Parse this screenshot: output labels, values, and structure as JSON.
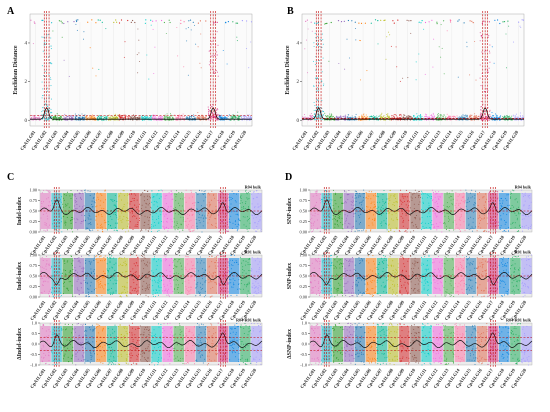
{
  "figure": {
    "panels": [
      {
        "id": "A",
        "letter": "A",
        "kind": "euclid",
        "ylabel": "Euclidean Distance",
        "yticks": [
          "0",
          "2",
          "4"
        ],
        "ymax": 5.5,
        "threshold": 0.25,
        "peak_chromosomes": [
          2,
          17
        ]
      },
      {
        "id": "B",
        "letter": "B",
        "kind": "euclid",
        "ylabel": "Euclidean Distance",
        "yticks": [
          "0",
          "2",
          "4"
        ],
        "ymax": 5.5,
        "threshold": 0.1,
        "peak_chromosomes": [
          2,
          17
        ]
      },
      {
        "id": "C",
        "letter": "C",
        "kind": "stack",
        "peak_chromosomes": [
          2,
          17
        ],
        "subplots": [
          {
            "ylabel": "Indel-index",
            "bulk_label": "R04 bulk",
            "yticks": [
              "0.00",
              "0.25",
              "0.50",
              "0.75",
              "1.00"
            ],
            "ymin": 0,
            "ymax": 1,
            "mean": 0.5,
            "threshold": 0.5
          },
          {
            "ylabel": "Indel-index",
            "bulk_label": "R01 bulk",
            "yticks": [
              "0.00",
              "0.25",
              "0.50",
              "0.75",
              "1.00"
            ],
            "ymin": 0,
            "ymax": 1,
            "mean": 0.5,
            "threshold": 0.5
          },
          {
            "ylabel": "ΔIndel-index",
            "bulk_label": "R04-R01 bulk",
            "yticks": [
              "-1.0",
              "-0.5",
              "0.0",
              "0.5",
              "1.0"
            ],
            "ymin": -1,
            "ymax": 1,
            "mean": 0.0,
            "threshold": 0.3
          }
        ]
      },
      {
        "id": "D",
        "letter": "D",
        "kind": "stack",
        "peak_chromosomes": [
          2,
          17
        ],
        "subplots": [
          {
            "ylabel": "SNP-index",
            "bulk_label": "R04 bulk",
            "yticks": [
              "0.00",
              "0.25",
              "0.50",
              "0.75",
              "1.00"
            ],
            "ymin": 0,
            "ymax": 1,
            "mean": 0.5,
            "threshold": 0.5
          },
          {
            "ylabel": "SNP-index",
            "bulk_label": "R01 bulk",
            "yticks": [
              "0.00",
              "0.25",
              "0.50",
              "0.75",
              "1.00"
            ],
            "ymin": 0,
            "ymax": 1,
            "mean": 0.5,
            "threshold": 0.5
          },
          {
            "ylabel": "ΔSNP-index",
            "bulk_label": "R04-R01 bulk",
            "yticks": [
              "-1.0",
              "-0.5",
              "0.0",
              "0.5",
              "1.0"
            ],
            "ymin": -1,
            "ymax": 1,
            "mean": 0.0,
            "threshold": 0.3
          }
        ]
      }
    ]
  },
  "chart_data": {
    "type": "scatter",
    "categories": [
      "CpA1LG01",
      "CpA1LG02",
      "CpA1LG03",
      "CpA1LG04",
      "CpA1LG05",
      "CpA1LG06",
      "CpA1LG07",
      "CpA1LG08",
      "CpA1LG09",
      "CpA1LG10",
      "CpA1LG11",
      "CpA1LG12",
      "CpA1LG13",
      "CpA1LG14",
      "CpA1LG15",
      "CpA1LG16",
      "CpA1LG17",
      "CpA1LG18",
      "CpA1LG19",
      "CpA1LG20"
    ],
    "colors": [
      "#e377c2",
      "#17becf",
      "#2ca02c",
      "#9467bd",
      "#1f77b4",
      "#ff7f0e",
      "#00b894",
      "#bcbd22",
      "#d62728",
      "#8c564b",
      "#00cec9",
      "#f368e0",
      "#4caf50",
      "#fd79a8",
      "#2980b9",
      "#e17055",
      "#d63384",
      "#0984e3",
      "#27ae60",
      "#a29bfe"
    ],
    "threshold_color": "#c00000",
    "peak_color": "#c00000"
  }
}
